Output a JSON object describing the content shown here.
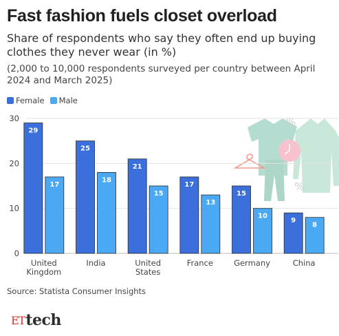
{
  "title": "Fast fashion fuels closet overload",
  "subtitle": "Share of respondents who say they often end up buying clothes they never wear (in %)",
  "note": "(2,000 to 10,000 respondents surveyed per country between April 2024 and March 2025)",
  "source": "Source: Statista Consumer Insights",
  "logo": {
    "et": "ET",
    "tech": "tech"
  },
  "colors": {
    "female": "#3b6fdb",
    "male": "#4aa9f2",
    "grid": "#e3e3e3",
    "text": "#444444"
  },
  "decor_icons": [
    "shirt-icon",
    "coat-icon",
    "trousers-icon",
    "hanger-icon",
    "clock-icon",
    "percent-icon"
  ],
  "chart_data": {
    "type": "bar",
    "categories": [
      [
        "United",
        "Kingdom"
      ],
      [
        "India"
      ],
      [
        "United",
        "States"
      ],
      [
        "France"
      ],
      [
        "Germany"
      ],
      [
        "China"
      ]
    ],
    "series": [
      {
        "name": "Female",
        "values": [
          29,
          25,
          21,
          17,
          15,
          9
        ]
      },
      {
        "name": "Male",
        "values": [
          17,
          18,
          15,
          13,
          10,
          8
        ]
      }
    ],
    "ylim": [
      0,
      30
    ],
    "yticks": [
      0,
      10,
      20,
      30
    ],
    "grid": true,
    "legend": "top-left",
    "data_labels": true
  }
}
